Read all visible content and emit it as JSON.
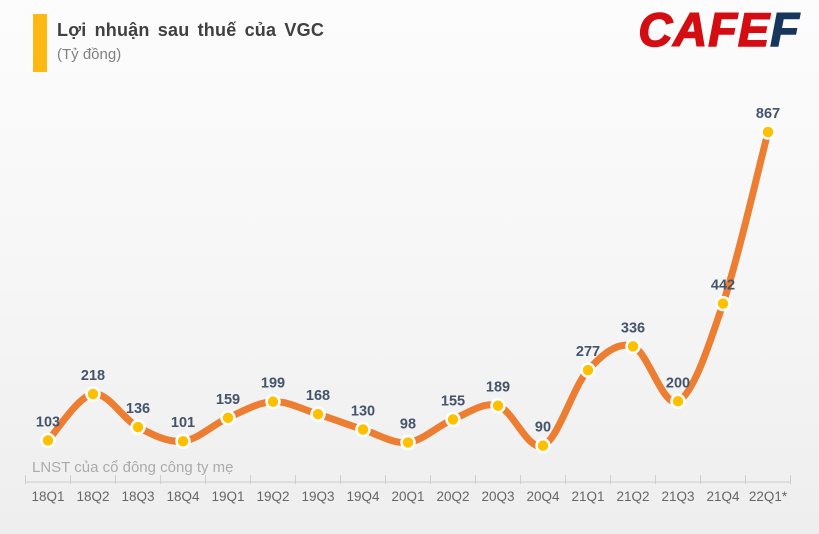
{
  "header": {
    "title": "Lợi nhuận sau thuế của VGC",
    "subtitle": "(Tỷ đồng)",
    "accent_color": "#FDB813"
  },
  "logo": {
    "text_red": "CAFE",
    "text_blue": "F",
    "red_color": "#D40D12",
    "blue_color": "#17365D"
  },
  "chart_data": {
    "type": "line",
    "title": "Lợi nhuận sau thuế của VGC",
    "ylabel": "Tỷ đồng",
    "series_label": "LNST của cổ đông công ty mẹ",
    "categories": [
      "18Q1",
      "18Q2",
      "18Q3",
      "18Q4",
      "19Q1",
      "19Q2",
      "19Q3",
      "19Q4",
      "20Q1",
      "20Q2",
      "20Q3",
      "20Q4",
      "21Q1",
      "21Q2",
      "21Q3",
      "21Q4",
      "22Q1*"
    ],
    "values": [
      103,
      218,
      136,
      101,
      159,
      199,
      168,
      130,
      98,
      155,
      189,
      90,
      277,
      336,
      200,
      442,
      867
    ],
    "ylim": [
      0,
      900
    ],
    "smooth": true,
    "grid": false,
    "legend_position": "none",
    "data_labels": true,
    "line_color": "#ED7D31",
    "marker_color": "#FFC000",
    "marker_border_color": "#FFFFFF",
    "value_label_color": "#44546A",
    "axis_color": "#CDCDCD",
    "x_label_color": "#666666"
  }
}
